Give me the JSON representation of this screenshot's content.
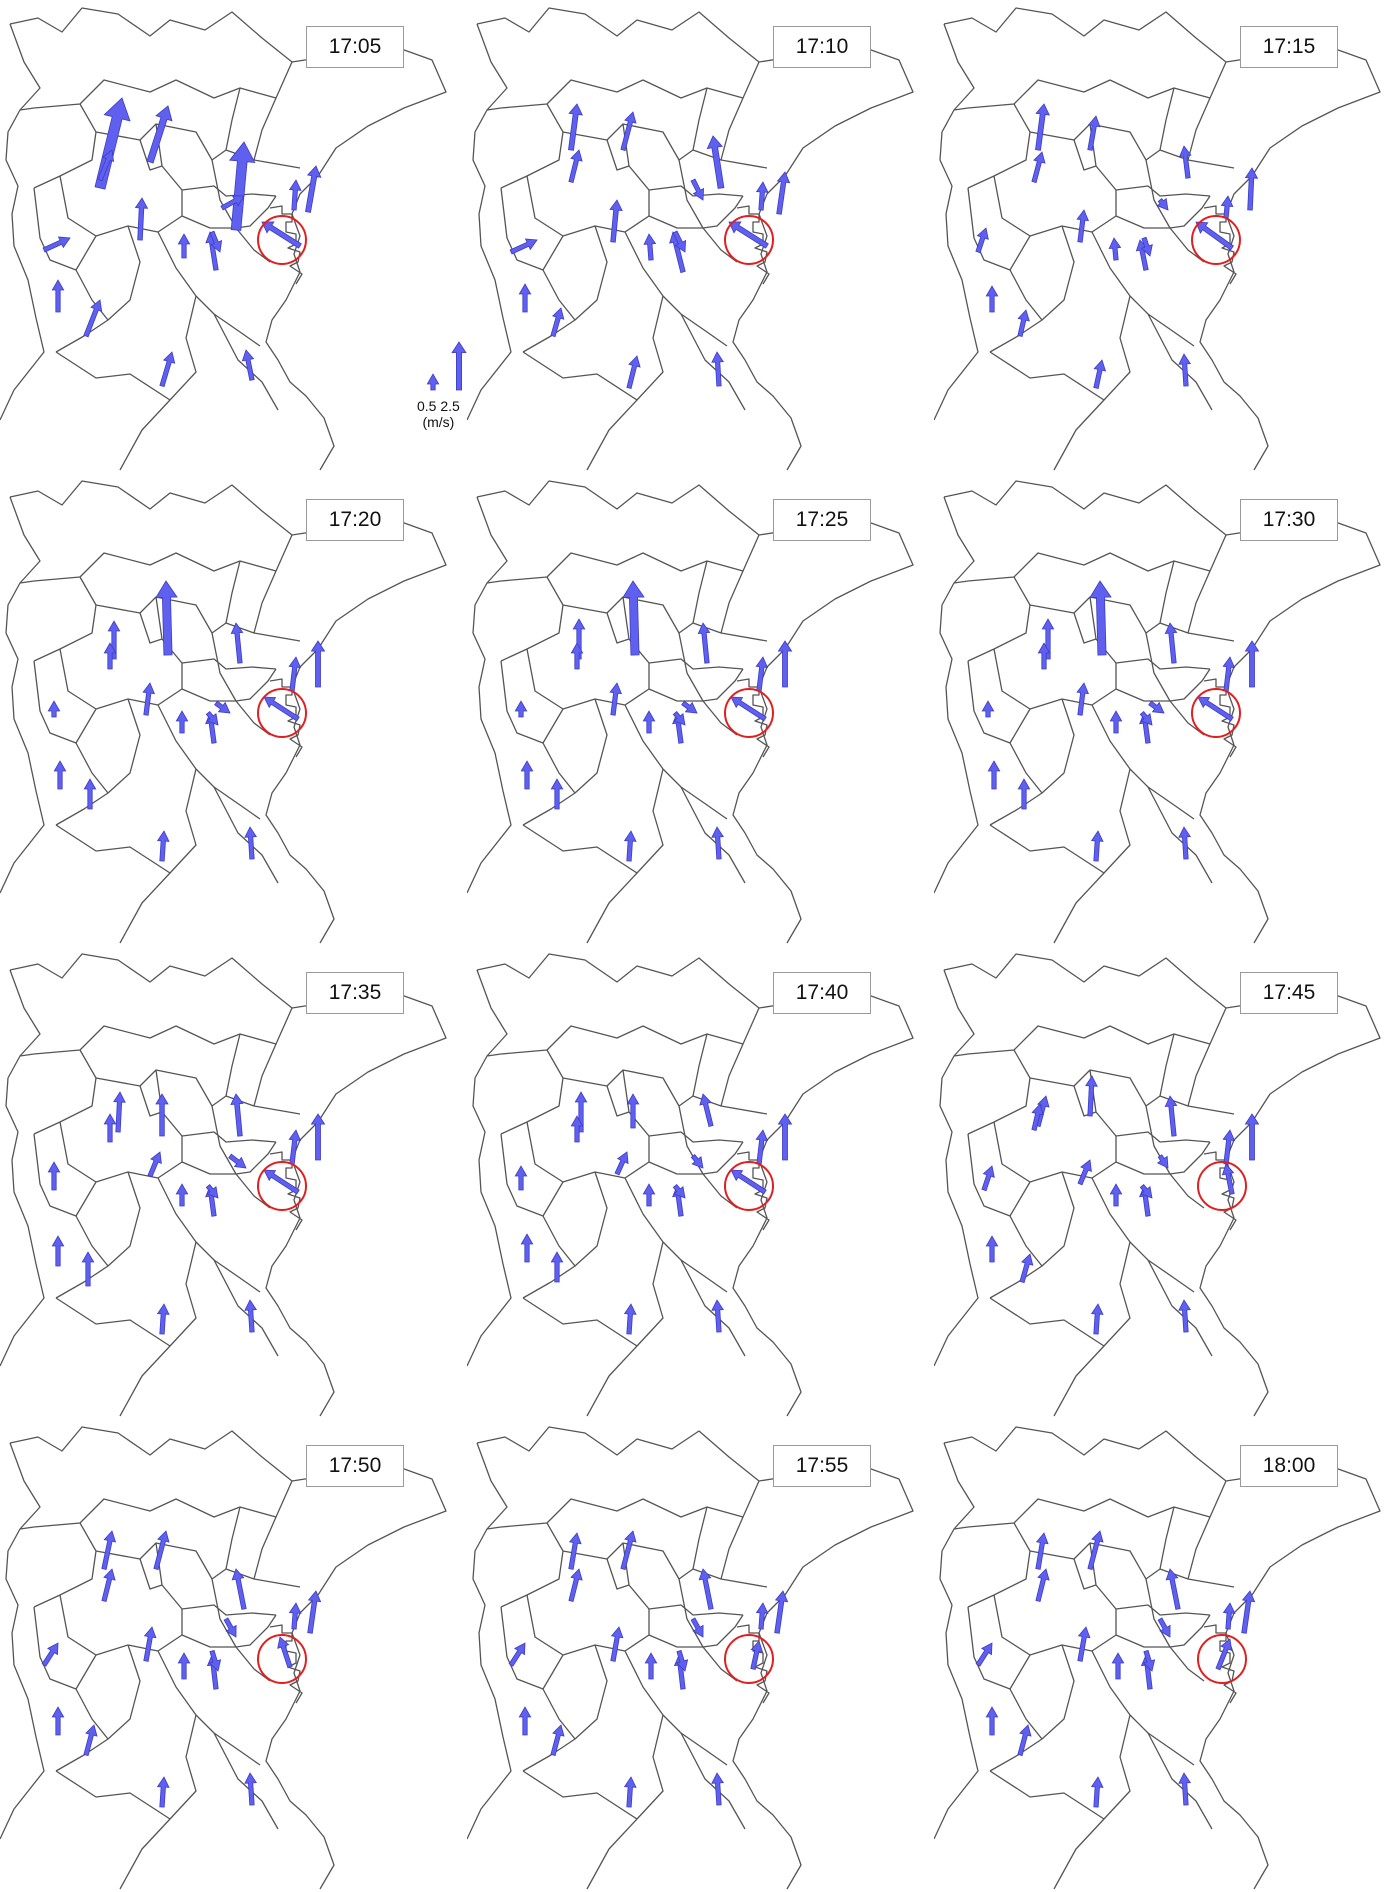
{
  "colors": {
    "arrow": "#6060ee",
    "arrow_stroke": "#3c3cc8",
    "boundary": "#555555",
    "circle": "#e02020"
  },
  "legend": {
    "small_value": "0.5",
    "large_value": "2.5",
    "unit": "(m/s)"
  },
  "panels": [
    {
      "time": "17:05"
    },
    {
      "time": "17:10"
    },
    {
      "time": "17:15"
    },
    {
      "time": "17:20"
    },
    {
      "time": "17:25"
    },
    {
      "time": "17:30"
    },
    {
      "time": "17:35"
    },
    {
      "time": "17:40"
    },
    {
      "time": "17:45"
    },
    {
      "time": "17:50"
    },
    {
      "time": "17:55"
    },
    {
      "time": "18:00"
    }
  ]
}
